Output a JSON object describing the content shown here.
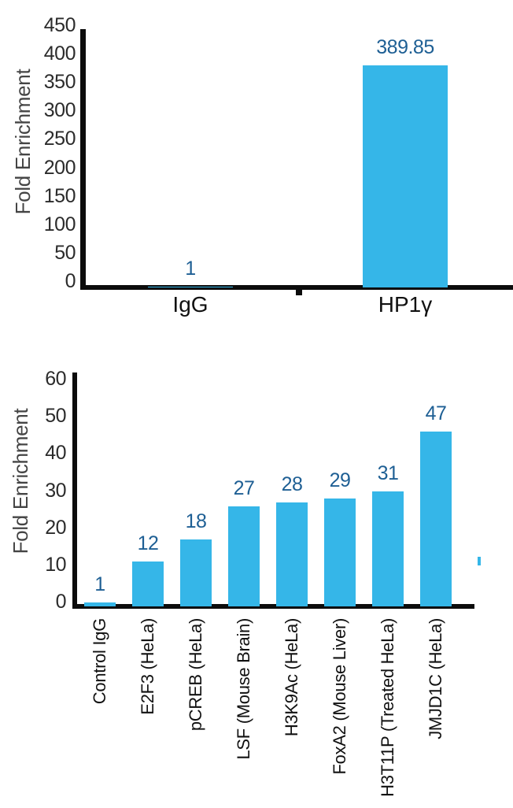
{
  "page": {
    "background": "#ffffff"
  },
  "colors": {
    "bar_fill": "#35B6E8",
    "value_label": "#1E5F94",
    "axis_line": "#0C0C0C",
    "tick_label": "#2B2B2B",
    "category_label": "#111111",
    "axis_title": "#444444"
  },
  "chart_data": [
    {
      "type": "bar",
      "title": "",
      "xlabel": "",
      "ylabel": "Fold Enrichment",
      "categories": [
        "IgG",
        "HP1γ"
      ],
      "values": [
        1,
        389.85
      ],
      "ylim": [
        0,
        450
      ],
      "yticks": [
        0,
        50,
        100,
        150,
        200,
        250,
        300,
        350,
        400,
        450
      ],
      "grid": false,
      "legend_position": "none",
      "value_labels_shown": true,
      "category_rotation_deg": 0
    },
    {
      "type": "bar",
      "title": "",
      "xlabel": "",
      "ylabel": "Fold Enrichment",
      "categories": [
        "Control IgG",
        "E2F3 (HeLa)",
        "pCREB (HeLa)",
        "LSF (Mouse Brain)",
        "H3K9Ac (HeLa)",
        "FoxA2 (Mouse Liver)",
        "H3T11P (Treated HeLa)",
        "JMJD1C (HeLa)"
      ],
      "values": [
        1,
        12,
        18,
        27,
        28,
        29,
        31,
        47
      ],
      "ylim": [
        0,
        60
      ],
      "yticks": [
        0,
        10,
        20,
        30,
        40,
        50,
        60
      ],
      "grid": false,
      "legend_position": "none",
      "value_labels_shown": true,
      "category_rotation_deg": 90
    }
  ]
}
